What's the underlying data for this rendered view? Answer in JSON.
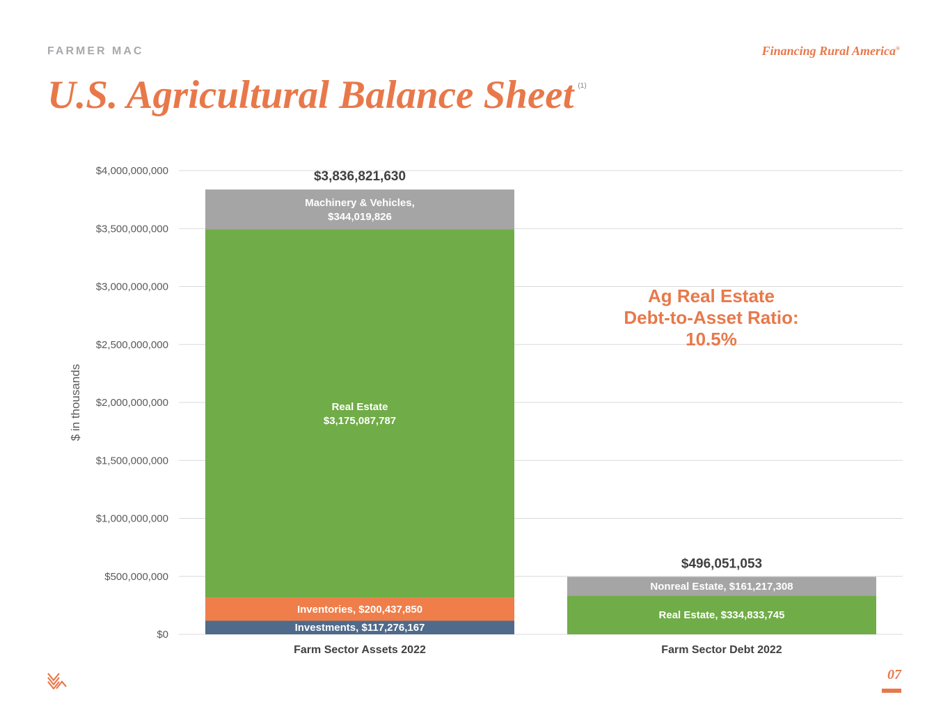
{
  "header": {
    "brand": "FARMER MAC",
    "tagline": "Financing Rural America",
    "tagline_mark": "®",
    "title": "U.S. Agricultural Balance Sheet",
    "title_footnote": "(1)"
  },
  "footer": {
    "page_number": "07",
    "logo_icon": "farmer-mac-chevron-logo"
  },
  "colors": {
    "accent": "#e8784a",
    "real_estate": "#70ac47",
    "machinery": "#a5a5a5",
    "inventories": "#ef7e4a",
    "investments": "#4f6a8a",
    "grid": "#d9d9d9"
  },
  "chart_data": {
    "type": "bar",
    "stacked": true,
    "ylabel": "$ in thousands",
    "ylim": [
      0,
      4000000000
    ],
    "yticks": [
      0,
      500000000,
      1000000000,
      1500000000,
      2000000000,
      2500000000,
      3000000000,
      3500000000,
      4000000000
    ],
    "ytick_labels": [
      "$0",
      "$500,000,000",
      "$1,000,000,000",
      "$1,500,000,000",
      "$2,000,000,000",
      "$2,500,000,000",
      "$3,000,000,000",
      "$3,500,000,000",
      "$4,000,000,000"
    ],
    "grid": true,
    "categories": [
      "Farm Sector Assets 2022",
      "Farm Sector Debt 2022"
    ],
    "totals": [
      3836821630,
      496051053
    ],
    "total_labels": [
      "$3,836,821,630",
      "$496,051,053"
    ],
    "stacks": [
      [
        {
          "name": "Investments",
          "value": 117276167,
          "label": [
            "Investments, $117,276,167"
          ],
          "color": "#4f6a8a"
        },
        {
          "name": "Inventories",
          "value": 200437850,
          "label": [
            "Inventories, $200,437,850"
          ],
          "color": "#ef7e4a"
        },
        {
          "name": "Real Estate",
          "value": 3175087787,
          "label": [
            "Real Estate",
            "$3,175,087,787"
          ],
          "color": "#70ac47"
        },
        {
          "name": "Machinery & Vehicles",
          "value": 344019826,
          "label": [
            "Machinery & Vehicles,",
            "$344,019,826"
          ],
          "color": "#a5a5a5"
        }
      ],
      [
        {
          "name": "Real Estate",
          "value": 334833745,
          "label": [
            "Real Estate, $334,833,745"
          ],
          "color": "#70ac47"
        },
        {
          "name": "Nonreal Estate",
          "value": 161217308,
          "label": [
            "Nonreal Estate, $161,217,308"
          ],
          "color": "#a5a5a5"
        }
      ]
    ],
    "annotation": [
      "Ag Real Estate",
      "Debt-to-Asset Ratio:",
      "10.5%"
    ]
  }
}
